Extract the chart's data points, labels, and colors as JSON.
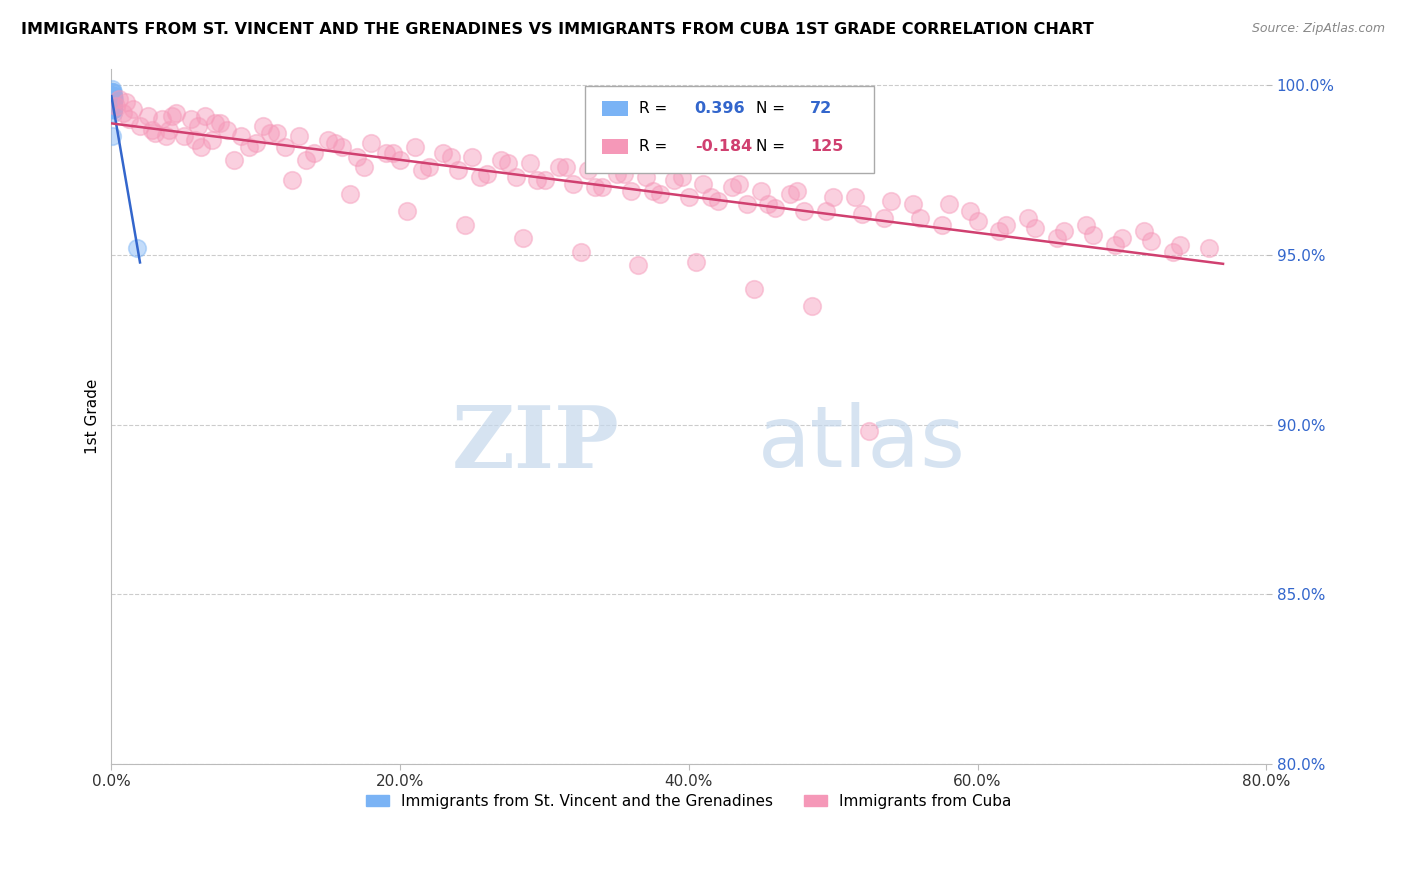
{
  "title": "IMMIGRANTS FROM ST. VINCENT AND THE GRENADINES VS IMMIGRANTS FROM CUBA 1ST GRADE CORRELATION CHART",
  "source": "Source: ZipAtlas.com",
  "ylabel_label": "1st Grade",
  "xmin": 0.0,
  "xmax": 80.0,
  "ymin": 80.0,
  "ymax": 100.5,
  "legend_v1": "0.396",
  "legend_n1": "72",
  "legend_v2": "-0.184",
  "legend_n2": "125",
  "series1_color": "#7ab3f5",
  "series2_color": "#f598b8",
  "series1_edge": "#5590e0",
  "series2_edge": "#e06090",
  "trendline1_color": "#3366cc",
  "trendline2_color": "#d04070",
  "series1_label": "Immigrants from St. Vincent and the Grenadines",
  "series2_label": "Immigrants from Cuba",
  "watermark_zip": "ZIP",
  "watermark_atlas": "atlas",
  "yticks": [
    80.0,
    85.0,
    90.0,
    95.0,
    100.0
  ],
  "xticks": [
    0.0,
    20.0,
    40.0,
    60.0,
    80.0
  ],
  "blue_x": [
    0.05,
    0.08,
    0.1,
    0.12,
    0.15,
    0.05,
    0.08,
    0.1,
    0.12,
    0.05,
    0.07,
    0.09,
    0.11,
    0.06,
    0.08,
    0.1,
    0.04,
    0.07,
    0.09,
    0.05,
    0.08,
    0.1,
    0.06,
    0.09,
    0.05,
    0.07,
    0.11,
    0.06,
    0.08,
    0.1,
    0.05,
    0.07,
    0.09,
    0.06,
    0.08,
    0.04,
    0.06,
    0.09,
    0.05,
    0.07,
    0.1,
    0.06,
    0.08,
    0.05,
    0.07,
    0.09,
    0.06,
    0.08,
    0.05,
    0.07,
    0.09,
    0.06,
    0.08,
    0.05,
    0.07,
    0.09,
    0.06,
    0.08,
    0.05,
    0.07,
    0.09,
    0.06,
    0.08,
    0.05,
    0.07,
    0.09,
    0.06,
    0.08,
    0.05,
    0.07,
    1.8,
    0.05
  ],
  "blue_y": [
    99.8,
    99.5,
    99.7,
    99.3,
    99.6,
    99.9,
    99.4,
    99.6,
    99.2,
    99.7,
    99.5,
    99.8,
    99.3,
    99.6,
    99.4,
    99.7,
    99.5,
    99.3,
    99.6,
    99.8,
    99.4,
    99.6,
    99.3,
    99.5,
    99.7,
    99.4,
    99.6,
    99.3,
    99.5,
    99.7,
    99.4,
    99.6,
    99.3,
    99.5,
    99.7,
    99.4,
    99.6,
    99.3,
    99.5,
    99.7,
    99.4,
    99.6,
    99.3,
    99.5,
    99.7,
    99.4,
    99.6,
    99.3,
    99.5,
    99.7,
    99.4,
    99.6,
    99.3,
    99.5,
    99.7,
    99.4,
    99.6,
    99.3,
    99.5,
    99.7,
    99.4,
    99.6,
    99.3,
    99.5,
    99.7,
    99.4,
    99.6,
    99.3,
    99.5,
    99.7,
    95.2,
    98.5
  ],
  "pink_x": [
    0.3,
    0.5,
    0.8,
    1.0,
    1.5,
    2.0,
    2.5,
    3.0,
    3.5,
    4.0,
    4.5,
    5.0,
    5.5,
    6.0,
    6.5,
    7.0,
    7.5,
    8.0,
    9.0,
    10.0,
    10.5,
    11.0,
    12.0,
    13.0,
    14.0,
    15.0,
    16.0,
    17.0,
    18.0,
    19.0,
    20.0,
    21.0,
    22.0,
    23.0,
    24.0,
    25.0,
    26.0,
    27.0,
    28.0,
    29.0,
    30.0,
    31.0,
    32.0,
    33.0,
    34.0,
    35.0,
    36.0,
    37.0,
    38.0,
    39.0,
    40.0,
    41.0,
    42.0,
    43.0,
    44.0,
    45.0,
    46.0,
    47.0,
    48.0,
    50.0,
    52.0,
    54.0,
    56.0,
    58.0,
    60.0,
    62.0,
    64.0,
    66.0,
    68.0,
    70.0,
    72.0,
    74.0,
    76.0,
    1.2,
    2.8,
    4.2,
    5.8,
    7.2,
    9.5,
    11.5,
    13.5,
    15.5,
    17.5,
    19.5,
    21.5,
    23.5,
    25.5,
    27.5,
    29.5,
    31.5,
    33.5,
    35.5,
    37.5,
    39.5,
    41.5,
    43.5,
    45.5,
    47.5,
    49.5,
    51.5,
    53.5,
    55.5,
    57.5,
    59.5,
    61.5,
    63.5,
    65.5,
    67.5,
    69.5,
    71.5,
    73.5,
    3.8,
    6.2,
    8.5,
    12.5,
    16.5,
    20.5,
    24.5,
    28.5,
    32.5,
    36.5,
    40.5,
    44.5,
    48.5,
    52.5
  ],
  "pink_y": [
    99.4,
    99.6,
    99.2,
    99.5,
    99.3,
    98.8,
    99.1,
    98.6,
    99.0,
    98.7,
    99.2,
    98.5,
    99.0,
    98.8,
    99.1,
    98.4,
    98.9,
    98.7,
    98.5,
    98.3,
    98.8,
    98.6,
    98.2,
    98.5,
    98.0,
    98.4,
    98.2,
    97.9,
    98.3,
    98.0,
    97.8,
    98.2,
    97.6,
    98.0,
    97.5,
    97.9,
    97.4,
    97.8,
    97.3,
    97.7,
    97.2,
    97.6,
    97.1,
    97.5,
    97.0,
    97.4,
    96.9,
    97.3,
    96.8,
    97.2,
    96.7,
    97.1,
    96.6,
    97.0,
    96.5,
    96.9,
    96.4,
    96.8,
    96.3,
    96.7,
    96.2,
    96.6,
    96.1,
    96.5,
    96.0,
    95.9,
    95.8,
    95.7,
    95.6,
    95.5,
    95.4,
    95.3,
    95.2,
    99.0,
    98.7,
    99.1,
    98.4,
    98.9,
    98.2,
    98.6,
    97.8,
    98.3,
    97.6,
    98.0,
    97.5,
    97.9,
    97.3,
    97.7,
    97.2,
    97.6,
    97.0,
    97.4,
    96.9,
    97.3,
    96.7,
    97.1,
    96.5,
    96.9,
    96.3,
    96.7,
    96.1,
    96.5,
    95.9,
    96.3,
    95.7,
    96.1,
    95.5,
    95.9,
    95.3,
    95.7,
    95.1,
    98.5,
    98.2,
    97.8,
    97.2,
    96.8,
    96.3,
    95.9,
    95.5,
    95.1,
    94.7,
    94.8,
    94.0,
    93.5,
    89.8
  ]
}
